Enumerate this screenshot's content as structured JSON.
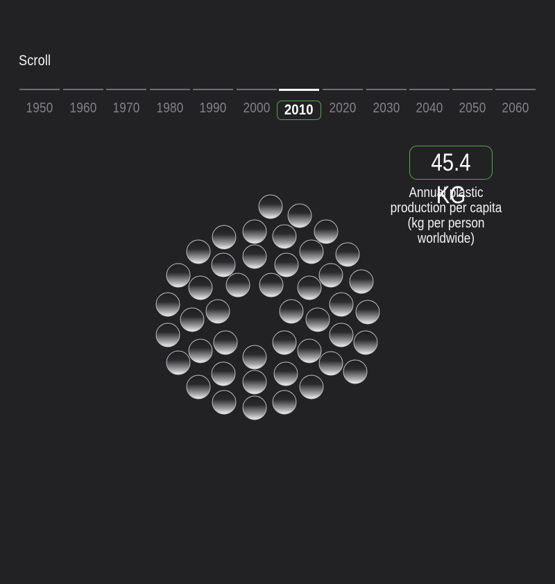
{
  "header": {
    "scroll_label": "Scroll"
  },
  "timeline": {
    "years": [
      "1950",
      "1960",
      "1970",
      "1980",
      "1990",
      "2000",
      "2010",
      "2020",
      "2030",
      "2040",
      "2050",
      "2060"
    ],
    "selected": "2010"
  },
  "stat": {
    "value": "45.4 KG",
    "caption_lines": [
      "Annual plastic",
      "production per capita",
      "(kg per person",
      "worldwide)"
    ]
  },
  "colors": {
    "background": "#222225",
    "accent": "#5aa84a",
    "inactive_bar": "#707074",
    "inactive_year": "#838387"
  }
}
